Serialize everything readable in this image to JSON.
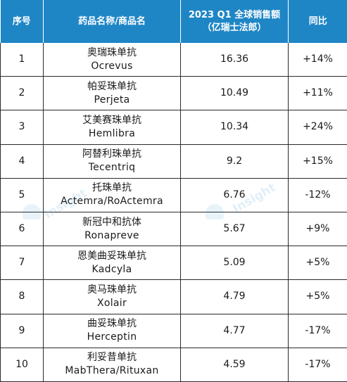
{
  "header": {
    "rank": "序号",
    "name": "药品名称/商品名",
    "sales_line1": "2023 Q1 全球销售额",
    "sales_line2": "（亿瑞士法郎）",
    "yoy": "同比"
  },
  "rows": [
    {
      "rank": "1",
      "name_zh": "奥瑞珠单抗",
      "name_en": "Ocrevus",
      "sales": "16.36",
      "yoy": "+14%"
    },
    {
      "rank": "2",
      "name_zh": "帕妥珠单抗",
      "name_en": "Perjeta",
      "sales": "10.49",
      "yoy": "+11%"
    },
    {
      "rank": "3",
      "name_zh": "艾美赛珠单抗",
      "name_en": "Hemlibra",
      "sales": "10.34",
      "yoy": "+24%"
    },
    {
      "rank": "4",
      "name_zh": "阿替利珠单抗",
      "name_en": "Tecentriq",
      "sales": "9.2",
      "yoy": "+15%"
    },
    {
      "rank": "5",
      "name_zh": "托珠单抗",
      "name_en": "Actemra/RoActemra",
      "sales": "6.76",
      "yoy": "-12%"
    },
    {
      "rank": "6",
      "name_zh": "新冠中和抗体",
      "name_en": "Ronapreve",
      "sales": "5.67",
      "yoy": "+9%"
    },
    {
      "rank": "7",
      "name_zh": "恩美曲妥珠单抗",
      "name_en": "Kadcyla",
      "sales": "5.09",
      "yoy": "+5%"
    },
    {
      "rank": "8",
      "name_zh": "奥马珠单抗",
      "name_en": "Xolair",
      "sales": "4.79",
      "yoy": "+5%"
    },
    {
      "rank": "9",
      "name_zh": "曲妥珠单抗",
      "name_en": "Herceptin",
      "sales": "4.77",
      "yoy": "-17%"
    },
    {
      "rank": "10",
      "name_zh": "利妥昔单抗",
      "name_en": "MabThera/Rituxan",
      "sales": "4.59",
      "yoy": "-17%"
    }
  ],
  "watermark": {
    "text": "Insight",
    "icon": "insight-logo-icon"
  },
  "colors": {
    "header_bg": "#1f86c6",
    "header_text": "#ffffff",
    "border": "#2a2a2a"
  }
}
